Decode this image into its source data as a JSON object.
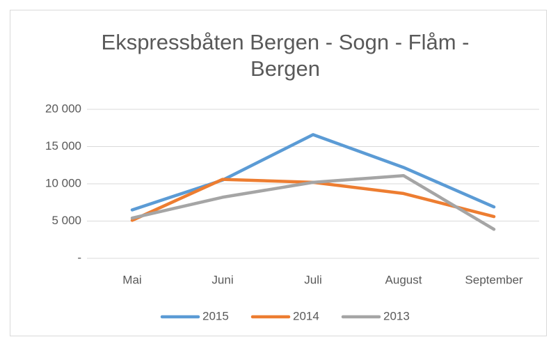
{
  "chart_data": {
    "type": "line",
    "title": "Ekspressbåten Bergen - Sogn - Flåm - Bergen",
    "categories": [
      "Mai",
      "Juni",
      "Juli",
      "August",
      "September"
    ],
    "series": [
      {
        "name": "2015",
        "color": "#5b9bd5",
        "values": [
          6500,
          10500,
          16600,
          12200,
          6900
        ]
      },
      {
        "name": "2014",
        "color": "#ed7d31",
        "values": [
          5100,
          10600,
          10200,
          8700,
          5600
        ]
      },
      {
        "name": "2013",
        "color": "#a5a5a5",
        "values": [
          5400,
          8200,
          10200,
          11100,
          3900
        ]
      }
    ],
    "ylim": [
      0,
      20000
    ],
    "yticks": [
      {
        "value": 0,
        "label": "-"
      },
      {
        "value": 5000,
        "label": "5 000"
      },
      {
        "value": 10000,
        "label": "10 000"
      },
      {
        "value": 15000,
        "label": "15 000"
      },
      {
        "value": 20000,
        "label": "20 000"
      }
    ],
    "grid": true,
    "legend": "bottom"
  }
}
